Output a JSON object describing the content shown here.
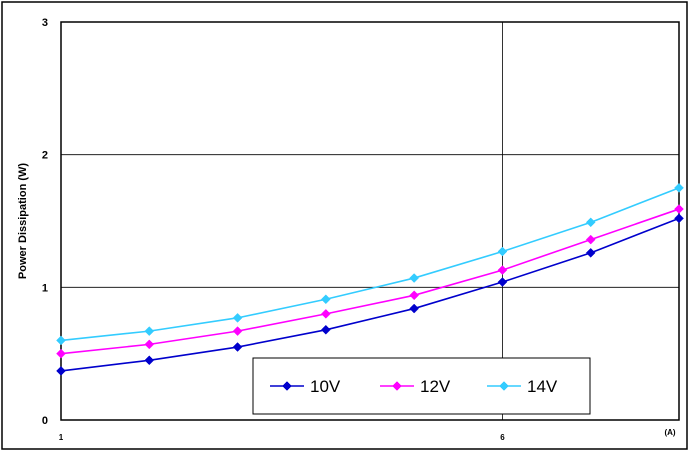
{
  "chart_data": {
    "type": "line",
    "title": "",
    "xlabel": "",
    "ylabel": "Power Dissipation (W)",
    "x_unit": "(A)",
    "x": [
      1,
      2,
      3,
      4,
      5,
      6,
      7,
      8
    ],
    "xlim": [
      1,
      8
    ],
    "ylim": [
      0,
      3
    ],
    "x_ticks": [
      1,
      6
    ],
    "y_ticks": [
      0,
      1,
      2,
      3
    ],
    "grid": true,
    "legend_position": "bottom-center",
    "series": [
      {
        "name": "10V",
        "color": "#0000CC",
        "values": [
          0.37,
          0.45,
          0.55,
          0.68,
          0.84,
          1.04,
          1.26,
          1.52
        ]
      },
      {
        "name": "12V",
        "color": "#FF00FF",
        "values": [
          0.5,
          0.57,
          0.67,
          0.8,
          0.94,
          1.13,
          1.36,
          1.59
        ]
      },
      {
        "name": "14V",
        "color": "#33CCFF",
        "values": [
          0.6,
          0.67,
          0.77,
          0.91,
          1.07,
          1.27,
          1.49,
          1.75
        ]
      }
    ]
  }
}
